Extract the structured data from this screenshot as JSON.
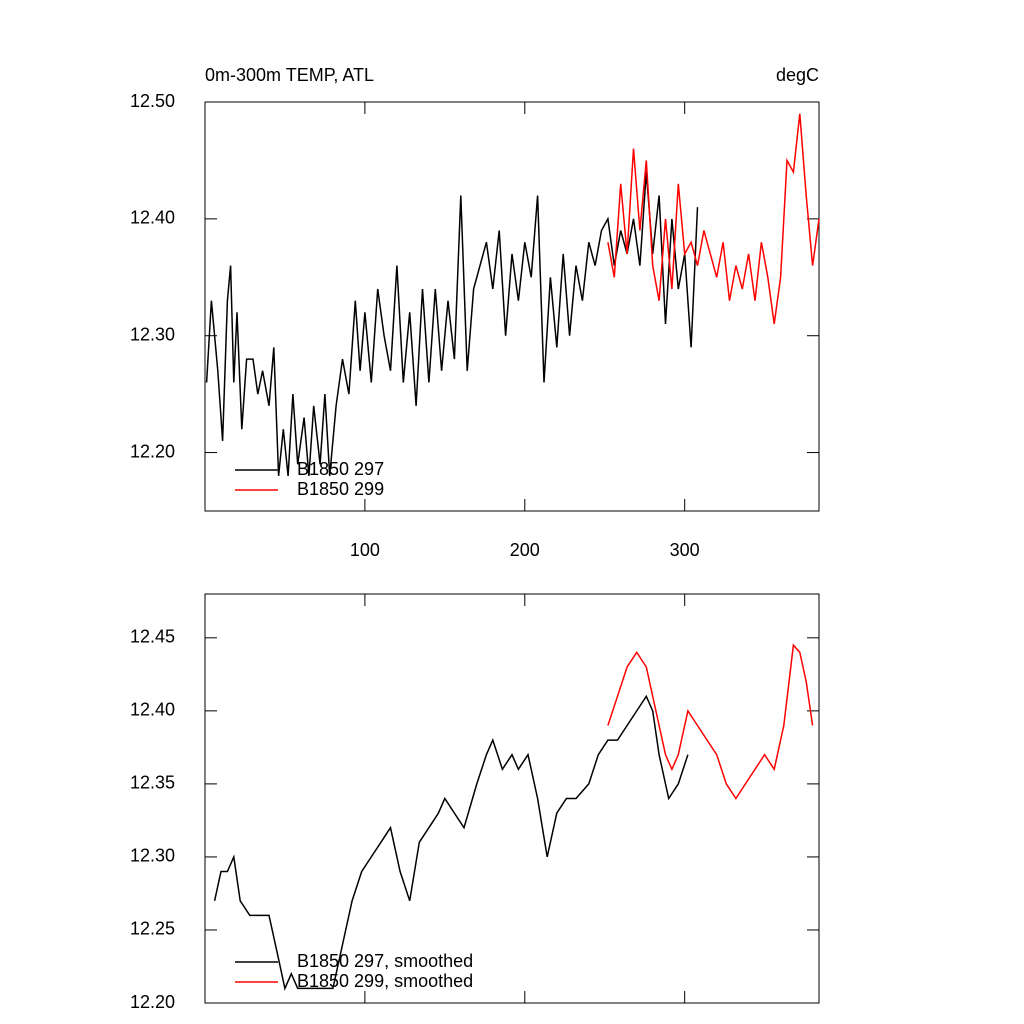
{
  "chart_data": [
    {
      "type": "line",
      "title": "0m-300m TEMP, ATL",
      "units": "degC",
      "xlim": [
        0,
        384
      ],
      "xticks": [
        100,
        200,
        300
      ],
      "ylim": [
        12.15,
        12.5
      ],
      "yticks": [
        {
          "value": 12.2,
          "label": "12.20"
        },
        {
          "value": 12.3,
          "label": "12.30"
        },
        {
          "value": 12.4,
          "label": "12.40"
        },
        {
          "value": 12.5,
          "label": "12.50"
        }
      ],
      "legend": "lower left",
      "series": [
        {
          "name": "B1850 297",
          "color": "#000000",
          "x": [
            1,
            4,
            8,
            11,
            14,
            16,
            18,
            20,
            23,
            26,
            30,
            33,
            36,
            40,
            43,
            46,
            49,
            52,
            55,
            58,
            62,
            65,
            68,
            72,
            75,
            78,
            82,
            86,
            90,
            94,
            97,
            100,
            104,
            108,
            112,
            116,
            120,
            124,
            128,
            132,
            136,
            140,
            144,
            148,
            152,
            156,
            160,
            164,
            168,
            172,
            176,
            180,
            184,
            188,
            192,
            196,
            200,
            204,
            208,
            212,
            216,
            220,
            224,
            228,
            232,
            236,
            240,
            244,
            248,
            252,
            256,
            260,
            264,
            268,
            272,
            276,
            280,
            284,
            288,
            292,
            296,
            300,
            304,
            308
          ],
          "values": [
            12.26,
            12.33,
            12.27,
            12.21,
            12.33,
            12.36,
            12.26,
            12.32,
            12.22,
            12.28,
            12.28,
            12.25,
            12.27,
            12.24,
            12.29,
            12.18,
            12.22,
            12.18,
            12.25,
            12.19,
            12.23,
            12.18,
            12.24,
            12.19,
            12.25,
            12.18,
            12.24,
            12.28,
            12.25,
            12.33,
            12.27,
            12.32,
            12.26,
            12.34,
            12.3,
            12.27,
            12.36,
            12.26,
            12.32,
            12.24,
            12.34,
            12.26,
            12.34,
            12.27,
            12.33,
            12.28,
            12.42,
            12.27,
            12.34,
            12.36,
            12.38,
            12.34,
            12.39,
            12.3,
            12.37,
            12.33,
            12.38,
            12.35,
            12.42,
            12.26,
            12.35,
            12.29,
            12.37,
            12.3,
            12.36,
            12.33,
            12.38,
            12.36,
            12.39,
            12.4,
            12.36,
            12.39,
            12.37,
            12.4,
            12.36,
            12.44,
            12.37,
            12.42,
            12.31,
            12.4,
            12.34,
            12.37,
            12.29,
            12.41
          ]
        },
        {
          "name": "B1850 299",
          "color": "#ff0000",
          "x": [
            252,
            256,
            260,
            264,
            268,
            272,
            276,
            280,
            284,
            288,
            292,
            296,
            300,
            304,
            308,
            312,
            316,
            320,
            324,
            328,
            332,
            336,
            340,
            344,
            348,
            352,
            356,
            360,
            364,
            368,
            372,
            376,
            380,
            384
          ],
          "values": [
            12.38,
            12.35,
            12.43,
            12.37,
            12.46,
            12.39,
            12.45,
            12.36,
            12.33,
            12.4,
            12.34,
            12.43,
            12.37,
            12.38,
            12.36,
            12.39,
            12.37,
            12.35,
            12.38,
            12.33,
            12.36,
            12.34,
            12.37,
            12.33,
            12.38,
            12.35,
            12.31,
            12.35,
            12.45,
            12.44,
            12.49,
            12.42,
            12.36,
            12.4
          ]
        }
      ]
    },
    {
      "type": "line",
      "xlim": [
        0,
        384
      ],
      "xticks": [
        100,
        200,
        300
      ],
      "ylim": [
        12.2,
        12.48
      ],
      "yticks": [
        {
          "value": 12.2,
          "label": "12.20"
        },
        12.25,
        {
          "value": 12.3,
          "label": "12.30"
        },
        12.35,
        {
          "value": 12.4,
          "label": "12.40"
        },
        12.45
      ],
      "legend": "lower left",
      "series": [
        {
          "name": "B1850 297, smoothed",
          "color": "#000000",
          "x": [
            6,
            10,
            14,
            18,
            22,
            28,
            34,
            40,
            46,
            50,
            54,
            58,
            62,
            68,
            74,
            80,
            86,
            92,
            98,
            104,
            110,
            116,
            122,
            128,
            134,
            140,
            146,
            150,
            156,
            162,
            170,
            176,
            180,
            186,
            192,
            196,
            202,
            208,
            214,
            220,
            226,
            232,
            240,
            246,
            252,
            258,
            264,
            270,
            276,
            280,
            284,
            290,
            296,
            302
          ],
          "values": [
            12.27,
            12.29,
            12.29,
            12.3,
            12.27,
            12.26,
            12.26,
            12.26,
            12.23,
            12.21,
            12.22,
            12.21,
            12.21,
            12.21,
            12.21,
            12.21,
            12.24,
            12.27,
            12.29,
            12.3,
            12.31,
            12.32,
            12.29,
            12.27,
            12.31,
            12.32,
            12.33,
            12.34,
            12.33,
            12.32,
            12.35,
            12.37,
            12.38,
            12.36,
            12.37,
            12.36,
            12.37,
            12.34,
            12.3,
            12.33,
            12.34,
            12.34,
            12.35,
            12.37,
            12.38,
            12.38,
            12.39,
            12.4,
            12.41,
            12.4,
            12.37,
            12.34,
            12.35,
            12.37
          ]
        },
        {
          "name": "B1850 299, smoothed",
          "color": "#ff0000",
          "x": [
            252,
            258,
            264,
            270,
            276,
            282,
            288,
            292,
            296,
            302,
            308,
            314,
            320,
            326,
            332,
            338,
            344,
            350,
            356,
            362,
            368,
            372,
            376,
            380
          ],
          "values": [
            12.39,
            12.41,
            12.43,
            12.44,
            12.43,
            12.4,
            12.37,
            12.36,
            12.37,
            12.4,
            12.39,
            12.38,
            12.37,
            12.35,
            12.34,
            12.35,
            12.36,
            12.37,
            12.36,
            12.39,
            12.445,
            12.44,
            12.42,
            12.39
          ]
        }
      ]
    }
  ]
}
